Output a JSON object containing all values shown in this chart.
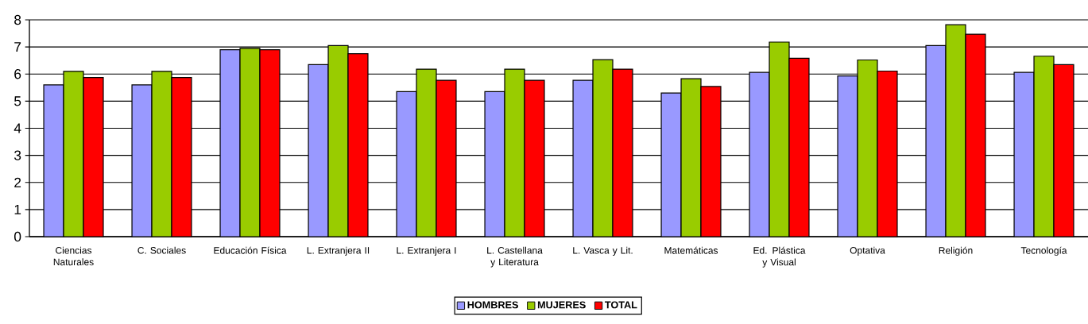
{
  "chart_data": {
    "type": "bar",
    "categories": [
      "Ciencias Naturales",
      "C. Sociales",
      "Educación Física",
      "L. Extranjera II",
      "L. Extranjera I",
      "L. Castellana y Literatura",
      "L. Vasca y Lit.",
      "Matemáticas",
      "Ed. Plástica y Visual",
      "Optativa",
      "Religión",
      "Tecnología"
    ],
    "series": [
      {
        "name": "HOMBRES",
        "color": "#9999ff",
        "values": [
          5.6,
          5.6,
          6.9,
          6.35,
          5.35,
          5.35,
          5.77,
          5.3,
          6.06,
          5.93,
          7.05,
          6.06
        ]
      },
      {
        "name": "MUJERES",
        "color": "#99cc00",
        "values": [
          6.1,
          6.1,
          6.95,
          7.05,
          6.18,
          6.18,
          6.53,
          5.83,
          7.18,
          6.52,
          7.82,
          6.66
        ]
      },
      {
        "name": "TOTAL",
        "color": "#ff0000",
        "values": [
          5.87,
          5.87,
          6.9,
          6.75,
          5.77,
          5.77,
          6.18,
          5.54,
          6.58,
          6.11,
          7.47,
          6.35
        ]
      }
    ],
    "ylim": [
      0,
      8
    ],
    "yticks": [
      0,
      1,
      2,
      3,
      4,
      5,
      6,
      7,
      8
    ],
    "grid": "y",
    "legend": "bottom"
  }
}
